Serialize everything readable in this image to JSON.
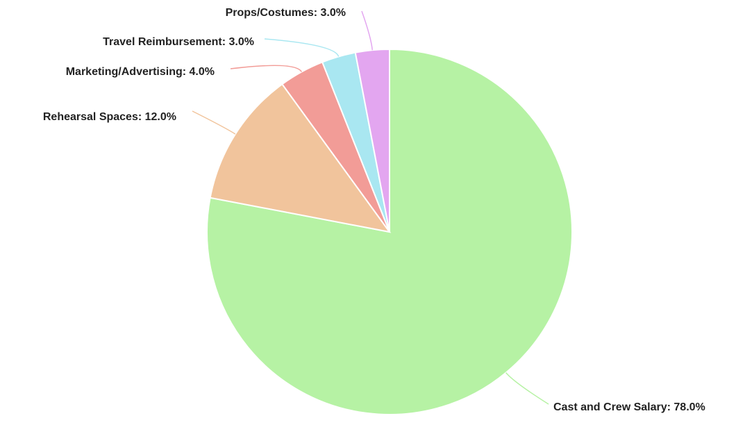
{
  "chart_data": {
    "type": "pie",
    "title": "",
    "slices": [
      {
        "label": "Cast and Crew Salary",
        "value": 78.0,
        "display": "Cast and Crew Salary: 78.0%",
        "color": "#b6f2a4"
      },
      {
        "label": "Rehearsal Spaces",
        "value": 12.0,
        "display": "Rehearsal Spaces: 12.0%",
        "color": "#f1c49c"
      },
      {
        "label": "Marketing/Advertising",
        "value": 4.0,
        "display": "Marketing/Advertising: 4.0%",
        "color": "#f29c97"
      },
      {
        "label": "Travel Reimbursement",
        "value": 3.0,
        "display": "Travel Reimbursement: 3.0%",
        "color": "#a9e7f1"
      },
      {
        "label": "Props/Costumes",
        "value": 3.0,
        "display": "Props/Costumes: 3.0%",
        "color": "#e3a6f0"
      }
    ],
    "start_angle": "12 o'clock",
    "direction": "clockwise",
    "legend": "none",
    "labels": "outside with leader lines"
  }
}
